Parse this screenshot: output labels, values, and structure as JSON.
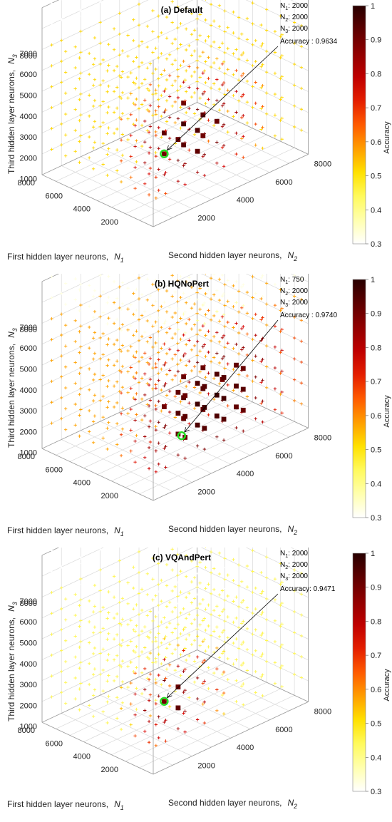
{
  "colorbar": {
    "label": "Accuracy",
    "ticks": [
      "0.3",
      "0.4",
      "0.5",
      "0.6",
      "0.7",
      "0.8",
      "0.9",
      "1"
    ],
    "range": [
      0.3,
      1
    ]
  },
  "axes": {
    "x_label": "First hidden layer neurons,",
    "x_sym": "N",
    "x_sub": "1",
    "y_label": "Second hidden layer neurons,",
    "y_sym": "N",
    "y_sub": "2",
    "z_label": "Third hidden layer neurons,",
    "z_sym": "N",
    "z_sub": "3",
    "x_ticks": [
      "2000",
      "4000",
      "6000",
      "8000"
    ],
    "y_ticks": [
      "2000",
      "4000",
      "6000",
      "8000"
    ],
    "z_ticks": [
      "1000",
      "2000",
      "3000",
      "4000",
      "5000",
      "6000",
      "7000",
      "8000"
    ]
  },
  "chart_data": [
    {
      "type": "scatter",
      "title": "(a) Default",
      "xlabel": "First hidden layer neurons, N1",
      "ylabel": "Second hidden layer neurons, N2",
      "zlabel": "Third hidden layer neurons, N3",
      "xlim": [
        0,
        8000
      ],
      "ylim": [
        0,
        8000
      ],
      "zlim": [
        0,
        8000
      ],
      "color_range": [
        0.3,
        1
      ],
      "best": {
        "N1": "2000",
        "N2": "2000",
        "N3": "2000",
        "accuracy": "0.9634"
      },
      "ann_n1": "N",
      "ann_n1_sub": "1",
      "ann_n1_val": ": 2000",
      "ann_n2": "N",
      "ann_n2_sub": "2",
      "ann_n2_val": ": 2000",
      "ann_n3": "N",
      "ann_n3_sub": "3",
      "ann_n3_val": ": 2000",
      "ann_acc": "Accuracy : 0.9634",
      "high_accuracy_region": "low N1, mid N2, low-mid N3"
    },
    {
      "type": "scatter",
      "title": "(b) HQNoPert",
      "xlabel": "First hidden layer neurons, N1",
      "ylabel": "Second hidden layer neurons, N2",
      "zlabel": "Third hidden layer neurons, N3",
      "xlim": [
        0,
        8000
      ],
      "ylim": [
        0,
        8000
      ],
      "zlim": [
        0,
        8000
      ],
      "color_range": [
        0.3,
        1
      ],
      "best": {
        "N1": "750",
        "N2": "2000",
        "N3": "2000",
        "accuracy": "0.9740"
      },
      "ann_n1": "N",
      "ann_n1_sub": "1",
      "ann_n1_val": ": 750",
      "ann_n2": "N",
      "ann_n2_sub": "2",
      "ann_n2_val": ": 2000",
      "ann_n3": "N",
      "ann_n3_sub": "3",
      "ann_n3_val": ": 2000",
      "ann_acc": "Accuracy : 0.9740",
      "high_accuracy_region": "low N1, broad N2 and N3"
    },
    {
      "type": "scatter",
      "title": "(c) VQAndPert",
      "xlabel": "First hidden layer neurons, N1",
      "ylabel": "Second hidden layer neurons, N2",
      "zlabel": "Third hidden layer neurons, N3",
      "xlim": [
        0,
        8000
      ],
      "ylim": [
        0,
        8000
      ],
      "zlim": [
        0,
        8000
      ],
      "color_range": [
        0.3,
        1
      ],
      "best": {
        "N1": "2000",
        "N2": "2000",
        "N3": "2000",
        "accuracy": "0.9471"
      },
      "ann_n1": "N",
      "ann_n1_sub": "1",
      "ann_n1_val": ": 2000",
      "ann_n2": "N",
      "ann_n2_sub": "2",
      "ann_n2_val": ": 2000",
      "ann_n3": "N",
      "ann_n3_sub": "3",
      "ann_n3_val": ": 2000",
      "ann_acc": "Accuracy: 0.9471",
      "high_accuracy_region": "low N1 and N2, low N3"
    }
  ]
}
